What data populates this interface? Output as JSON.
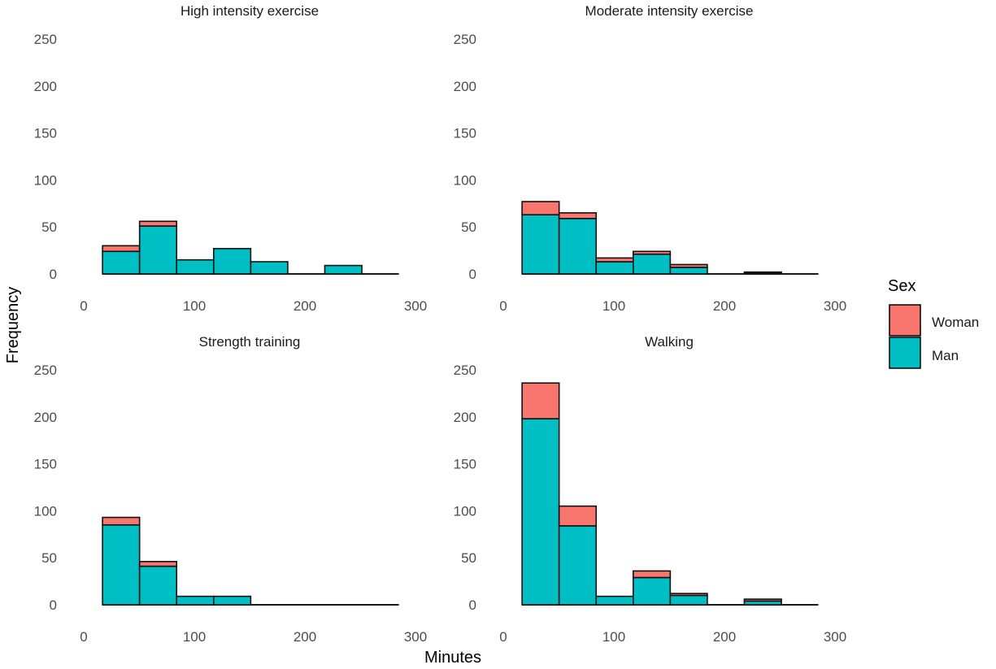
{
  "chart_data": {
    "type": "bar",
    "subtype": "faceted stacked histogram",
    "xlabel": "Minutes",
    "ylabel": "Frequency",
    "xlim": [
      0,
      300
    ],
    "ylim": [
      0,
      250
    ],
    "x_ticks": [
      0,
      100,
      200,
      300
    ],
    "y_ticks": [
      0,
      50,
      100,
      150,
      200,
      250
    ],
    "grid": false,
    "bin_edges": [
      17,
      50.5,
      84,
      117.5,
      151,
      184.5,
      218,
      251.5,
      285
    ],
    "legend": {
      "title": "Sex",
      "position": "right",
      "entries": [
        {
          "name": "Woman",
          "color": "#F8766D"
        },
        {
          "name": "Man",
          "color": "#00BFC4"
        }
      ]
    },
    "panels": [
      {
        "title": "High intensity exercise",
        "series": [
          {
            "name": "Man",
            "values": [
              24,
              51,
              15,
              27,
              13,
              0,
              9,
              0
            ]
          },
          {
            "name": "Woman",
            "values": [
              6,
              5,
              0,
              0,
              0,
              0,
              0,
              0
            ]
          }
        ]
      },
      {
        "title": "Moderate intensity exercise",
        "series": [
          {
            "name": "Man",
            "values": [
              63,
              59,
              13,
              21,
              7,
              0,
              1,
              0
            ]
          },
          {
            "name": "Woman",
            "values": [
              14,
              6,
              4,
              3,
              3,
              0,
              1,
              0
            ]
          }
        ]
      },
      {
        "title": "Strength training",
        "series": [
          {
            "name": "Man",
            "values": [
              85,
              41,
              9,
              9,
              0,
              0,
              0,
              0
            ]
          },
          {
            "name": "Woman",
            "values": [
              8,
              5,
              0,
              0,
              0,
              0,
              0,
              0
            ]
          }
        ]
      },
      {
        "title": "Walking",
        "series": [
          {
            "name": "Man",
            "values": [
              198,
              84,
              9,
              29,
              10,
              0,
              4,
              0
            ]
          },
          {
            "name": "Woman",
            "values": [
              38,
              21,
              0,
              7,
              2,
              0,
              2,
              0
            ]
          }
        ]
      }
    ]
  }
}
